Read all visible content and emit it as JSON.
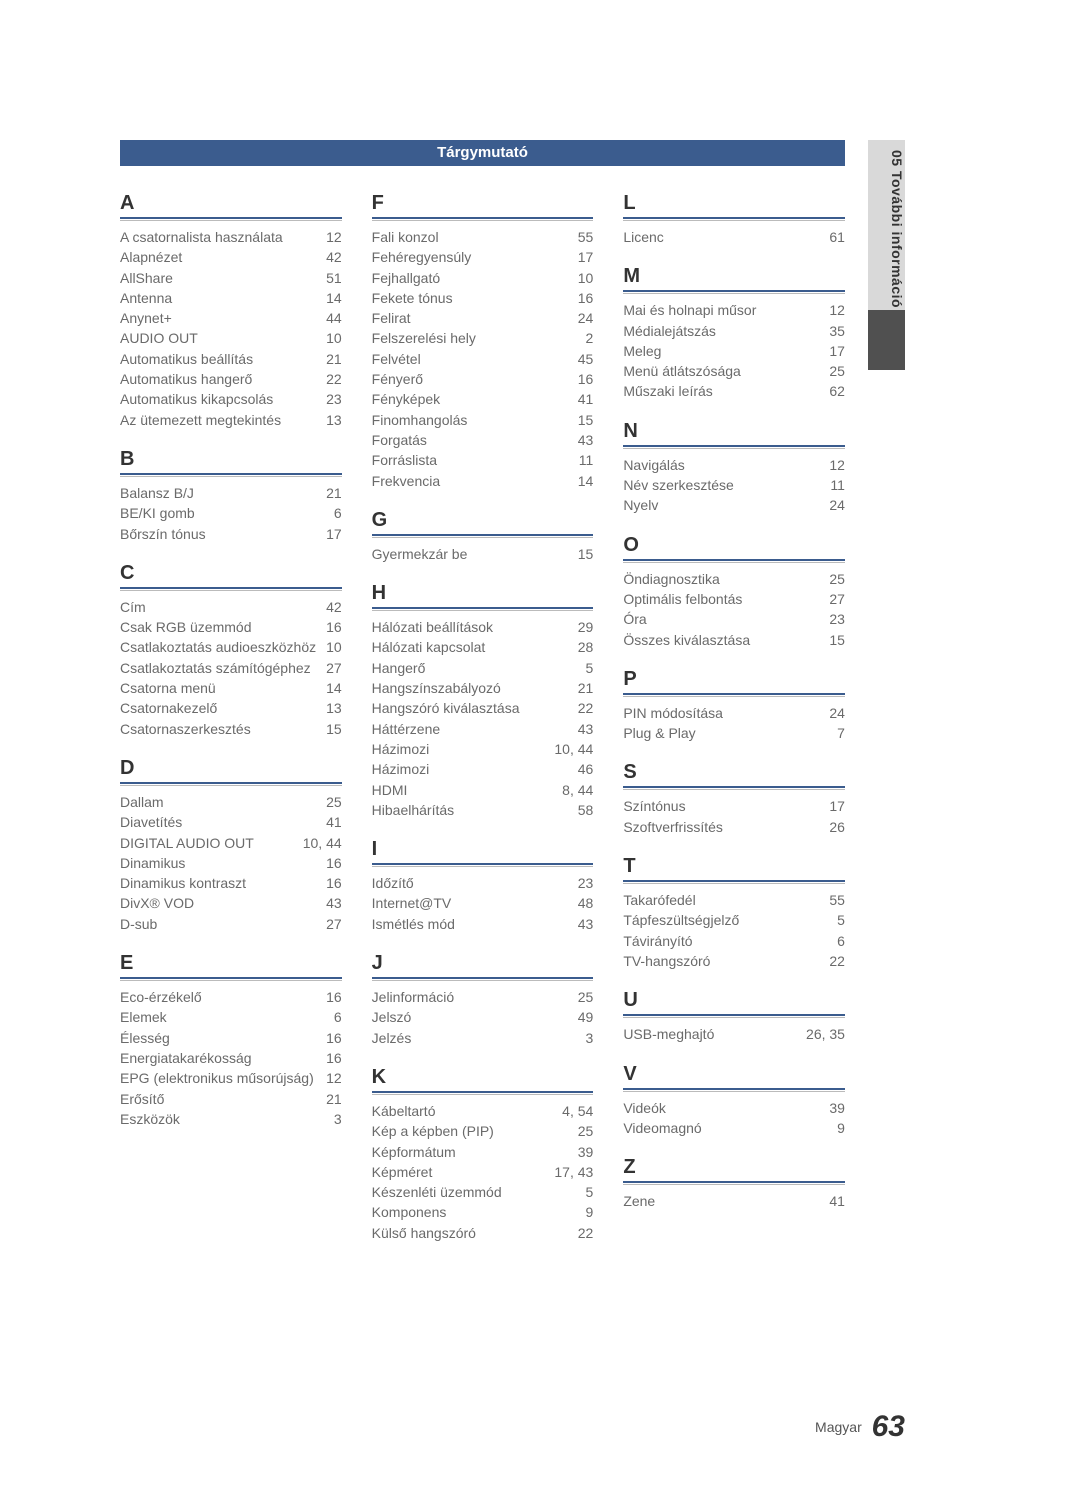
{
  "title": "Tárgymutató",
  "side_tab": "05  További információ",
  "footer_label": "Magyar",
  "footer_page": "63",
  "sections": [
    {
      "letter": "A",
      "items": [
        {
          "t": "A csatornalista használata",
          "p": "12"
        },
        {
          "t": "Alapnézet",
          "p": "42"
        },
        {
          "t": "AllShare",
          "p": "51"
        },
        {
          "t": "Antenna",
          "p": "14"
        },
        {
          "t": "Anynet+",
          "p": "44"
        },
        {
          "t": "AUDIO OUT",
          "p": "10"
        },
        {
          "t": "Automatikus beállítás",
          "p": "21"
        },
        {
          "t": "Automatikus hangerő",
          "p": "22"
        },
        {
          "t": "Automatikus kikapcsolás",
          "p": "23"
        },
        {
          "t": "Az ütemezett megtekintés",
          "p": "13"
        }
      ]
    },
    {
      "letter": "B",
      "items": [
        {
          "t": "Balansz B/J",
          "p": "21"
        },
        {
          "t": "BE/KI gomb",
          "p": "6"
        },
        {
          "t": "Bőrszín tónus",
          "p": "17"
        }
      ]
    },
    {
      "letter": "C",
      "items": [
        {
          "t": "Cím",
          "p": "42"
        },
        {
          "t": "Csak RGB üzemmód",
          "p": "16"
        },
        {
          "t": "Csatlakoztatás audioeszközhöz",
          "p": "10"
        },
        {
          "t": "Csatlakoztatás számítógéphez",
          "p": "27"
        },
        {
          "t": "Csatorna menü",
          "p": "14"
        },
        {
          "t": "Csatornakezelő",
          "p": "13"
        },
        {
          "t": "Csatornaszerkesztés",
          "p": "15"
        }
      ]
    },
    {
      "letter": "D",
      "items": [
        {
          "t": "Dallam",
          "p": "25"
        },
        {
          "t": "Diavetítés",
          "p": "41"
        },
        {
          "t": "DIGITAL AUDIO OUT",
          "p": "10, 44"
        },
        {
          "t": "Dinamikus",
          "p": "16"
        },
        {
          "t": "Dinamikus kontraszt",
          "p": "16"
        },
        {
          "t": "DivX® VOD",
          "p": "43"
        },
        {
          "t": "D-sub",
          "p": "27"
        }
      ]
    },
    {
      "letter": "E",
      "items": [
        {
          "t": "Eco-érzékelő",
          "p": "16"
        },
        {
          "t": "Elemek",
          "p": "6"
        },
        {
          "t": "Élesség",
          "p": "16"
        },
        {
          "t": "Energiatakarékosság",
          "p": "16"
        },
        {
          "t": "EPG (elektronikus műsorújság)",
          "p": "12"
        },
        {
          "t": "Erősítő",
          "p": "21"
        },
        {
          "t": "Eszközök",
          "p": "3"
        }
      ]
    },
    {
      "letter": "F",
      "items": [
        {
          "t": "Fali konzol",
          "p": "55"
        },
        {
          "t": "Fehéregyensúly",
          "p": "17"
        },
        {
          "t": "Fejhallgató",
          "p": "10"
        },
        {
          "t": "Fekete tónus",
          "p": "16"
        },
        {
          "t": "Felirat",
          "p": "24"
        },
        {
          "t": "Felszerelési hely",
          "p": "2"
        },
        {
          "t": "Felvétel",
          "p": "45"
        },
        {
          "t": "Fényerő",
          "p": "16"
        },
        {
          "t": "Fényképek",
          "p": "41"
        },
        {
          "t": "Finomhangolás",
          "p": "15"
        },
        {
          "t": "Forgatás",
          "p": "43"
        },
        {
          "t": "Forráslista",
          "p": "11"
        },
        {
          "t": "Frekvencia",
          "p": "14"
        }
      ]
    },
    {
      "letter": "G",
      "items": [
        {
          "t": "Gyermekzár be",
          "p": "15"
        }
      ]
    },
    {
      "letter": "H",
      "items": [
        {
          "t": "Hálózati beállítások",
          "p": "29"
        },
        {
          "t": "Hálózati kapcsolat",
          "p": "28"
        },
        {
          "t": "Hangerő",
          "p": "5"
        },
        {
          "t": "Hangszínszabályozó",
          "p": "21"
        },
        {
          "t": "Hangszóró kiválasztása",
          "p": "22"
        },
        {
          "t": "Háttérzene",
          "p": "43"
        },
        {
          "t": "Házimozi",
          "p": "10, 44"
        },
        {
          "t": "Házimozi",
          "p": "46"
        },
        {
          "t": "HDMI",
          "p": "8, 44"
        },
        {
          "t": "Hibaelhárítás",
          "p": "58"
        }
      ]
    },
    {
      "letter": "I",
      "items": [
        {
          "t": "Időzítő",
          "p": "23"
        },
        {
          "t": "Internet@TV",
          "p": "48"
        },
        {
          "t": "Ismétlés mód",
          "p": "43"
        }
      ]
    },
    {
      "letter": "J",
      "items": [
        {
          "t": "Jelinformáció",
          "p": "25"
        },
        {
          "t": "Jelszó",
          "p": "49"
        },
        {
          "t": "Jelzés",
          "p": "3"
        }
      ]
    },
    {
      "letter": "K",
      "items": [
        {
          "t": "Kábeltartó",
          "p": "4, 54"
        },
        {
          "t": "Kép a képben (PIP)",
          "p": "25"
        },
        {
          "t": "Képformátum",
          "p": "39"
        },
        {
          "t": "Képméret",
          "p": "17, 43"
        },
        {
          "t": "Készenléti üzemmód",
          "p": "5"
        },
        {
          "t": "Komponens",
          "p": "9"
        },
        {
          "t": "Külső hangszóró",
          "p": "22"
        }
      ]
    },
    {
      "letter": "L",
      "items": [
        {
          "t": "Licenc",
          "p": "61"
        }
      ]
    },
    {
      "letter": "M",
      "items": [
        {
          "t": "Mai és holnapi műsor",
          "p": "12"
        },
        {
          "t": "Médialejátszás",
          "p": "35"
        },
        {
          "t": "Meleg",
          "p": "17"
        },
        {
          "t": "Menü átlátszósága",
          "p": "25"
        },
        {
          "t": "Műszaki leírás",
          "p": "62"
        }
      ]
    },
    {
      "letter": "N",
      "items": [
        {
          "t": "Navigálás",
          "p": "12"
        },
        {
          "t": "Név szerkesztése",
          "p": "11"
        },
        {
          "t": "Nyelv",
          "p": "24"
        }
      ]
    },
    {
      "letter": "O",
      "items": [
        {
          "t": "Öndiagnosztika",
          "p": "25"
        },
        {
          "t": "Optimális felbontás",
          "p": "27"
        },
        {
          "t": "Óra",
          "p": "23"
        },
        {
          "t": "Összes kiválasztása",
          "p": "15"
        }
      ]
    },
    {
      "letter": "P",
      "items": [
        {
          "t": "PIN módosítása",
          "p": "24"
        },
        {
          "t": "Plug & Play",
          "p": "7"
        }
      ]
    },
    {
      "letter": "S",
      "items": [
        {
          "t": "Színtónus",
          "p": "17"
        },
        {
          "t": "Szoftverfrissítés",
          "p": "26"
        }
      ]
    },
    {
      "letter": "T",
      "items": [
        {
          "t": "Takarófedél",
          "p": "55"
        },
        {
          "t": "Tápfeszültségjelző",
          "p": "5"
        },
        {
          "t": "Távirányító",
          "p": "6"
        },
        {
          "t": "TV-hangszóró",
          "p": "22"
        }
      ]
    },
    {
      "letter": "U",
      "items": [
        {
          "t": "USB-meghajtó",
          "p": "26, 35"
        }
      ]
    },
    {
      "letter": "V",
      "items": [
        {
          "t": "Videók",
          "p": "39"
        },
        {
          "t": "Videomagnó",
          "p": "9"
        }
      ]
    },
    {
      "letter": "Z",
      "items": [
        {
          "t": "Zene",
          "p": "41"
        }
      ]
    }
  ]
}
